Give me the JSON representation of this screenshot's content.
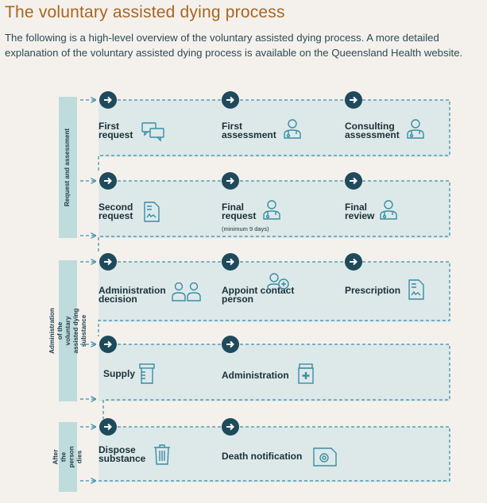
{
  "title": "The voluntary assisted dying process",
  "intro": "The following is a high-level overview of the voluntary assisted dying process. A more detailed explanation of the voluntary assisted dying process is available on the Queensland Health website.",
  "phases": [
    "Request and assessment",
    "Administration of the voluntary assisted dying substance",
    "After the person dies"
  ],
  "steps": {
    "first_request": "First request",
    "first_assessment": "First assessment",
    "consulting_assessment": "Consulting assessment",
    "second_request": "Second request",
    "final_request": "Final request",
    "final_request_note": "(minimum 9 days)",
    "final_review": "Final review",
    "administration_decision": "Administration decision",
    "appoint_contact_person": "Appoint contact person",
    "prescription": "Prescription",
    "supply": "Supply",
    "administration": "Administration",
    "dispose_substance": "Dispose substance",
    "death_notification": "Death notification"
  },
  "icons": {
    "first_request": "speech-bubbles-icon",
    "first_assessment": "doctor-icon",
    "consulting_assessment": "doctor-icon",
    "second_request": "document-signature-icon",
    "final_request": "doctor-icon",
    "final_review": "doctor-icon",
    "administration_decision": "two-people-icon",
    "appoint_contact_person": "add-person-icon",
    "prescription": "document-signature-icon",
    "supply": "bottle-icon",
    "administration": "medicine-bottle-icon",
    "dispose_substance": "bin-icon",
    "death_notification": "certificate-icon"
  },
  "colors": {
    "title": "#a8651f",
    "dark_teal": "#1f4a5c",
    "panel": "#dde9e9",
    "band": "#bfdcdc",
    "icon": "#3a8ca5"
  }
}
